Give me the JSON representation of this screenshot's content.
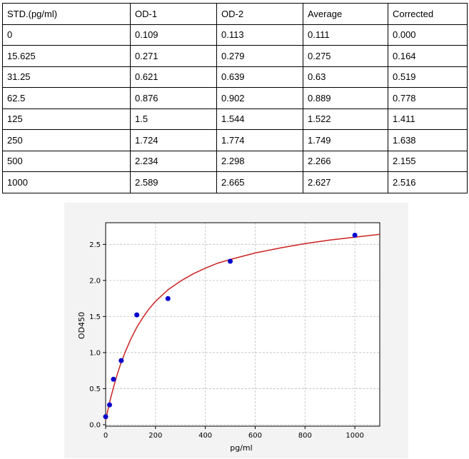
{
  "table": {
    "headers": [
      "STD.(pg/ml)",
      "OD-1",
      "OD-2",
      "Average",
      "Corrected"
    ],
    "rows": [
      [
        "0",
        "0.109",
        "0.113",
        "0.111",
        "0.000"
      ],
      [
        "15.625",
        "0.271",
        "0.279",
        "0.275",
        "0.164"
      ],
      [
        "31.25",
        "0.621",
        "0.639",
        "0.63",
        "0.519"
      ],
      [
        "62.5",
        "0.876",
        "0.902",
        "0.889",
        "0.778"
      ],
      [
        "125",
        "1.5",
        "1.544",
        "1.522",
        "1.411"
      ],
      [
        "250",
        "1.724",
        "1.774",
        "1.749",
        "1.638"
      ],
      [
        "500",
        "2.234",
        "2.298",
        "2.266",
        "2.155"
      ],
      [
        "1000",
        "2.589",
        "2.665",
        "2.627",
        "2.516"
      ]
    ]
  },
  "chart_data": {
    "type": "scatter",
    "title": "",
    "xlabel": "pg/ml",
    "ylabel": "OD450",
    "xlim": [
      0,
      1100
    ],
    "ylim": [
      -0.02,
      2.8
    ],
    "xticks": [
      0,
      200,
      400,
      600,
      800,
      1000
    ],
    "yticks": [
      0.0,
      0.5,
      1.0,
      1.5,
      2.0,
      2.5
    ],
    "xtick_labels": [
      "0",
      "200",
      "400",
      "600",
      "800",
      "1000"
    ],
    "ytick_labels": [
      "0.0",
      "0.5",
      "1.0",
      "1.5",
      "2.0",
      "2.5"
    ],
    "grid": true,
    "series": [
      {
        "x": [
          0,
          15.625,
          31.25,
          62.5,
          125,
          250,
          500,
          1000
        ],
        "y": [
          0.111,
          0.275,
          0.63,
          0.889,
          1.522,
          1.749,
          2.266,
          2.627
        ],
        "color": "#0000cc"
      }
    ],
    "fit_curve": {
      "color": "#cc2222",
      "x": [
        0,
        10,
        20,
        30,
        45,
        60,
        80,
        100,
        125,
        150,
        175,
        200,
        250,
        300,
        350,
        400,
        450,
        500,
        600,
        700,
        800,
        900,
        1000,
        1100
      ],
      "y": [
        0.06,
        0.22,
        0.37,
        0.5,
        0.68,
        0.84,
        1.02,
        1.18,
        1.35,
        1.49,
        1.61,
        1.71,
        1.87,
        1.99,
        2.09,
        2.17,
        2.24,
        2.29,
        2.38,
        2.45,
        2.51,
        2.56,
        2.6,
        2.64
      ]
    }
  }
}
